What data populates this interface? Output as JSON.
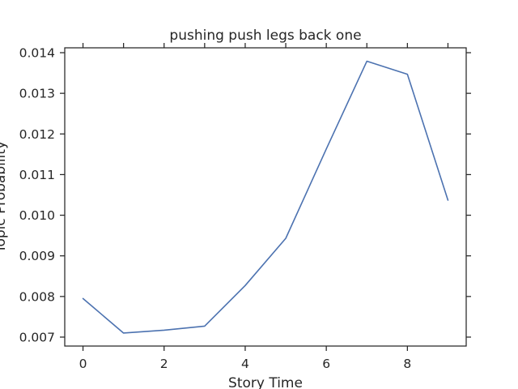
{
  "chart_data": {
    "type": "line",
    "title": "pushing push legs back one",
    "xlabel": "Story Time",
    "ylabel": "Topic Probability",
    "x": [
      0,
      1,
      2,
      3,
      4,
      5,
      6,
      7,
      8,
      9
    ],
    "series": [
      {
        "values": [
          0.00795,
          0.0071,
          0.00717,
          0.00727,
          0.00827,
          0.00943,
          0.01163,
          0.01379,
          0.01347,
          0.01037
        ],
        "color": "#4c72b0"
      }
    ],
    "xlim": [
      -0.45,
      9.45
    ],
    "ylim": [
      0.00678,
      0.01412
    ],
    "xticks": [
      0,
      2,
      4,
      6,
      8
    ],
    "xtick_labels": [
      "0",
      "2",
      "4",
      "6",
      "8"
    ],
    "yticks": [
      0.007,
      0.008,
      0.009,
      0.01,
      0.011,
      0.012,
      0.013,
      0.014
    ],
    "ytick_labels": [
      "0.007",
      "0.008",
      "0.009",
      "0.010",
      "0.011",
      "0.012",
      "0.013",
      "0.014"
    ],
    "minor_xticks_top": [
      0,
      1,
      2,
      3,
      4,
      5,
      6,
      7,
      8,
      9
    ],
    "grid": false,
    "legend": "none"
  }
}
